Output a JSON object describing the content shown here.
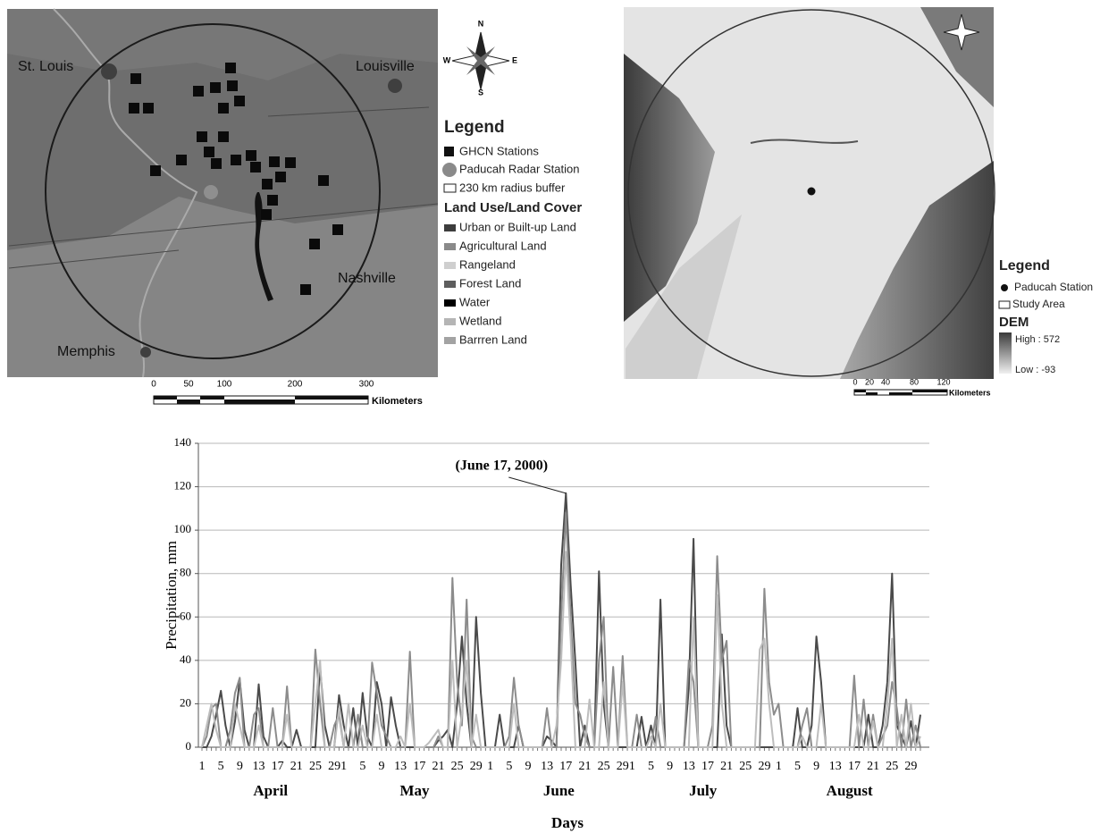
{
  "map_left": {
    "cities": [
      "St. Louis",
      "Louisville",
      "Nashville",
      "Memphis"
    ],
    "compass": [
      "N",
      "S",
      "E",
      "W"
    ],
    "legend": {
      "title": "Legend",
      "items": [
        "GHCN Stations",
        "Paducah Radar Station",
        "230 km radius buffer"
      ],
      "subtitle": "Land Use/Land Cover",
      "classes": [
        "Urban or Built-up Land",
        "Agricultural Land",
        "Rangeland",
        "Forest Land",
        "Water",
        "Wetland",
        "Barrren Land"
      ]
    },
    "scale": {
      "ticks": [
        "0",
        "50",
        "100",
        "200",
        "300"
      ],
      "unit": "Kilometers"
    }
  },
  "map_right": {
    "legend": {
      "title": "Legend",
      "items": [
        "Paducah Station",
        "Study Area"
      ],
      "subtitle": "DEM",
      "high": "High : 572",
      "low": "Low : -93"
    },
    "scale": {
      "ticks": [
        "0",
        "20",
        "40",
        "80",
        "120"
      ],
      "unit": "Kilometers"
    }
  },
  "chart_data": {
    "type": "line",
    "ylabel": "Precipitation, mm",
    "xlabel": "Days",
    "annotation": "(June 17, 2000)",
    "months": [
      "April",
      "May",
      "June",
      "July",
      "August"
    ],
    "categories": [
      "1",
      null,
      null,
      null,
      "5",
      null,
      null,
      null,
      "9",
      null,
      null,
      null,
      "13",
      null,
      null,
      null,
      "17",
      null,
      null,
      null,
      "21",
      null,
      null,
      null,
      "25",
      null,
      null,
      null,
      "29",
      null,
      "1",
      null,
      null,
      null,
      "5",
      null,
      null,
      null,
      "9",
      null,
      null,
      null,
      "13",
      null,
      null,
      null,
      "17",
      null,
      null,
      null,
      "21",
      null,
      null,
      null,
      "25",
      null,
      null,
      null,
      "29",
      null,
      null,
      "1",
      null,
      null,
      null,
      "5",
      null,
      null,
      null,
      "9",
      null,
      null,
      null,
      "13",
      null,
      null,
      null,
      "17",
      null,
      null,
      null,
      "21",
      null,
      null,
      null,
      "25",
      null,
      null,
      null,
      "29",
      null,
      "1",
      null,
      null,
      null,
      "5",
      null,
      null,
      null,
      "9",
      null,
      null,
      null,
      "13",
      null,
      null,
      null,
      "17",
      null,
      null,
      null,
      "21",
      null,
      null,
      null,
      "25",
      null,
      null,
      null,
      "29",
      null,
      null,
      "1",
      null,
      null,
      null,
      "5",
      null,
      null,
      null,
      "9",
      null,
      null,
      null,
      "13",
      null,
      null,
      null,
      "17",
      null,
      null,
      null,
      "21",
      null,
      null,
      null,
      "25",
      null,
      null,
      null,
      "29",
      null,
      null
    ],
    "series": [
      {
        "color": "#4a4a4a",
        "values": [
          0,
          0,
          5,
          15,
          26,
          10,
          0,
          12,
          31,
          8,
          0,
          0,
          29,
          5,
          0,
          0,
          0,
          3,
          0,
          0,
          8,
          0,
          0,
          0,
          0,
          37,
          10,
          0,
          0,
          24,
          10,
          0,
          18,
          0,
          25,
          5,
          0,
          30,
          20,
          0,
          23,
          10,
          0,
          0,
          0,
          0,
          0,
          0,
          0,
          0,
          3,
          5,
          8,
          0,
          20,
          51,
          20,
          0,
          60,
          25,
          0,
          0,
          0,
          15,
          0,
          0,
          0,
          10,
          0,
          0,
          0,
          0,
          0,
          5,
          3,
          0,
          84,
          117,
          75,
          39,
          0,
          10,
          0,
          0,
          81,
          20,
          0,
          0,
          0,
          0,
          0,
          0,
          0,
          14,
          0,
          10,
          0,
          68,
          0,
          0,
          0,
          0,
          0,
          27,
          96,
          0,
          0,
          0,
          0,
          0,
          52,
          10,
          0,
          0,
          0,
          0,
          0,
          0,
          0,
          0,
          0,
          0,
          0,
          0,
          0,
          0,
          18,
          0,
          0,
          10,
          51,
          30,
          0,
          0,
          0,
          0,
          0,
          0,
          0,
          0,
          0,
          15,
          0,
          0,
          10,
          30,
          80,
          10,
          5,
          0,
          12,
          0,
          15
        ]
      },
      {
        "color": "#8c8c8c",
        "values": [
          0,
          5,
          18,
          20,
          0,
          0,
          8,
          25,
          32,
          0,
          0,
          15,
          18,
          0,
          0,
          18,
          0,
          0,
          28,
          0,
          0,
          0,
          0,
          0,
          45,
          20,
          0,
          0,
          10,
          15,
          0,
          0,
          0,
          15,
          0,
          0,
          39,
          25,
          10,
          5,
          0,
          0,
          0,
          0,
          44,
          0,
          0,
          0,
          0,
          0,
          5,
          0,
          0,
          78,
          30,
          10,
          68,
          5,
          0,
          0,
          0,
          0,
          0,
          0,
          0,
          5,
          32,
          10,
          0,
          0,
          0,
          0,
          0,
          18,
          0,
          0,
          60,
          108,
          60,
          20,
          15,
          5,
          0,
          0,
          40,
          60,
          0,
          37,
          0,
          42,
          0,
          0,
          15,
          0,
          0,
          0,
          14,
          0,
          0,
          0,
          0,
          0,
          0,
          40,
          30,
          0,
          0,
          0,
          10,
          88,
          40,
          49,
          0,
          0,
          0,
          0,
          0,
          0,
          0,
          73,
          30,
          15,
          20,
          0,
          0,
          0,
          0,
          10,
          18,
          0,
          0,
          0,
          0,
          0,
          0,
          0,
          0,
          0,
          33,
          0,
          22,
          0,
          15,
          0,
          5,
          10,
          30,
          18,
          0,
          22,
          0,
          10,
          0
        ]
      },
      {
        "color": "#bdbdbd",
        "values": [
          0,
          10,
          20,
          8,
          0,
          0,
          0,
          20,
          10,
          0,
          0,
          0,
          10,
          0,
          0,
          0,
          0,
          0,
          15,
          0,
          0,
          0,
          0,
          0,
          20,
          40,
          0,
          0,
          0,
          18,
          0,
          20,
          0,
          0,
          10,
          0,
          0,
          15,
          0,
          0,
          0,
          0,
          5,
          0,
          20,
          0,
          0,
          0,
          2,
          5,
          8,
          0,
          0,
          40,
          0,
          15,
          40,
          0,
          15,
          0,
          0,
          0,
          0,
          0,
          0,
          0,
          20,
          0,
          0,
          0,
          0,
          0,
          0,
          0,
          0,
          10,
          40,
          90,
          50,
          0,
          0,
          0,
          22,
          0,
          0,
          30,
          0,
          0,
          0,
          30,
          0,
          0,
          0,
          0,
          0,
          5,
          0,
          20,
          0,
          0,
          0,
          0,
          0,
          0,
          60,
          0,
          0,
          0,
          0,
          70,
          20,
          0,
          0,
          0,
          0,
          0,
          0,
          0,
          45,
          50,
          20,
          0,
          0,
          0,
          0,
          0,
          0,
          5,
          0,
          0,
          0,
          20,
          0,
          0,
          0,
          0,
          0,
          0,
          0,
          15,
          0,
          0,
          12,
          0,
          0,
          20,
          50,
          0,
          15,
          0,
          20,
          0,
          5
        ]
      }
    ],
    "ylim": [
      0,
      140
    ],
    "yticks": [
      0,
      20,
      40,
      60,
      80,
      100,
      120,
      140
    ],
    "grid": true
  }
}
